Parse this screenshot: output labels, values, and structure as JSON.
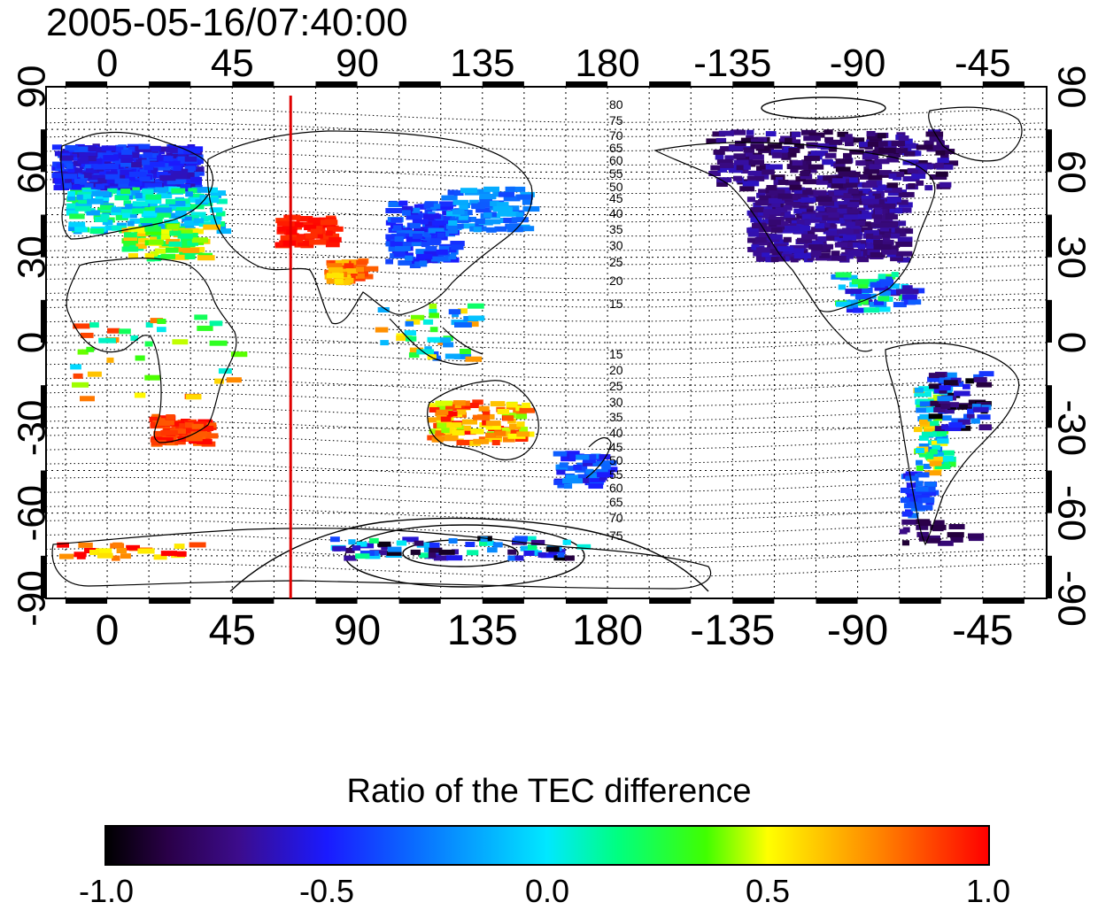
{
  "title": "2005-05-16/07:40:00",
  "map": {
    "lon_ticks": [
      "0",
      "45",
      "90",
      "135",
      "180",
      "-135",
      "-90",
      "-45"
    ],
    "lon_values": [
      0,
      45,
      90,
      135,
      180,
      -135,
      -90,
      -45
    ],
    "lat_ticks": [
      "90",
      "60",
      "30",
      "0",
      "-30",
      "-60",
      "-90"
    ],
    "lat_values": [
      90,
      60,
      30,
      0,
      -30,
      -60,
      -90
    ],
    "lon_range": [
      -22,
      338
    ],
    "lat_range": [
      -90,
      90
    ],
    "grid": "dotted, 15 degree spacing",
    "marker_longitude": 66,
    "marker_color": "#e00000",
    "contour_labels_north": [
      "80",
      "75",
      "70",
      "65",
      "60",
      "55",
      "50",
      "45",
      "40",
      "35",
      "30",
      "25",
      "20",
      "15"
    ],
    "contour_labels_south": [
      "15",
      "20",
      "25",
      "30",
      "35",
      "40",
      "45",
      "50",
      "55",
      "60",
      "65",
      "70",
      "75"
    ]
  },
  "colorbar": {
    "title": "Ratio of the TEC difference",
    "ticks": [
      "-1.0",
      "-0.5",
      "0.0",
      "0.5",
      "1.0"
    ],
    "tick_values": [
      -1.0,
      -0.5,
      0.0,
      0.5,
      1.0
    ],
    "range": [
      -1.0,
      1.0
    ]
  }
}
